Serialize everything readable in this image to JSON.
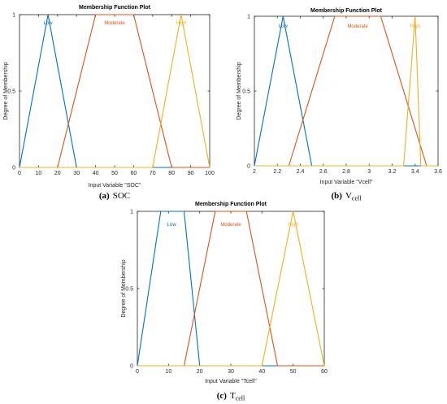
{
  "colors": {
    "Low": "#0072BD",
    "Moderate": "#D95319",
    "High": "#EDB120"
  },
  "chart_data": [
    {
      "type": "line",
      "title": "Membership Function Plot",
      "xlabel": "Input Variable \"SOC\"",
      "ylabel": "Degree of Membership",
      "xlim": [
        0,
        100
      ],
      "ylim": [
        0,
        1
      ],
      "xticks": [
        0,
        10,
        20,
        30,
        40,
        50,
        60,
        70,
        80,
        90,
        100
      ],
      "xtick_labels": [
        "0",
        "10",
        "20",
        "30",
        "40",
        "50",
        "60",
        "70",
        "80",
        "90",
        "100"
      ],
      "yticks": [
        0,
        0.5,
        1
      ],
      "ytick_labels": [
        "0",
        "0.5",
        "1"
      ],
      "caption_label": "(a)",
      "caption_text": "SOC",
      "caption_sub": "",
      "series": [
        {
          "name": "Low",
          "x": [
            0,
            15,
            30,
            100
          ],
          "y": [
            0,
            1,
            0,
            0
          ],
          "label_x": 15
        },
        {
          "name": "Moderate",
          "x": [
            0,
            20,
            40,
            60,
            80,
            100
          ],
          "y": [
            0,
            0,
            1,
            1,
            0,
            0
          ],
          "label_x": 50
        },
        {
          "name": "High",
          "x": [
            0,
            70,
            85,
            100
          ],
          "y": [
            0,
            0,
            1,
            0
          ],
          "label_x": 85
        }
      ]
    },
    {
      "type": "line",
      "title": "Membership Function Plot",
      "xlabel": "Input Variable \"Vcell\"",
      "ylabel": "Degree of Membership",
      "xlim": [
        2,
        3.6
      ],
      "ylim": [
        0,
        1
      ],
      "xticks": [
        2,
        2.2,
        2.4,
        2.6,
        2.8,
        3,
        3.2,
        3.4,
        3.6
      ],
      "xtick_labels": [
        "2",
        "2.2",
        "2.4",
        "2.6",
        "2.8",
        "3",
        "3.2",
        "3.4",
        "3.6"
      ],
      "yticks": [
        0,
        0.5,
        1
      ],
      "ytick_labels": [
        "0",
        "0.5",
        "1"
      ],
      "caption_label": "(b)",
      "caption_text": "V",
      "caption_sub": "cell",
      "series": [
        {
          "name": "Low",
          "x": [
            2,
            2.25,
            2.5,
            3.6
          ],
          "y": [
            0,
            1,
            0,
            0
          ],
          "label_x": 2.25
        },
        {
          "name": "Moderate",
          "x": [
            2,
            2.3,
            2.7,
            3.1,
            3.5,
            3.6
          ],
          "y": [
            0,
            0,
            1,
            1,
            0,
            0
          ],
          "label_x": 2.9
        },
        {
          "name": "High",
          "x": [
            2,
            3.3,
            3.4,
            3.45,
            3.6
          ],
          "y": [
            0,
            0,
            1,
            0,
            0
          ],
          "label_x": 3.4
        }
      ]
    },
    {
      "type": "line",
      "title": "Membership Function Plot",
      "xlabel": "Input Variable \"Tcell\"",
      "ylabel": "Degree of Membership",
      "xlim": [
        0,
        60
      ],
      "ylim": [
        0,
        1
      ],
      "xticks": [
        0,
        10,
        20,
        30,
        40,
        50,
        60
      ],
      "xtick_labels": [
        "0",
        "10",
        "20",
        "30",
        "40",
        "50",
        "60"
      ],
      "yticks": [
        0,
        0.5,
        1
      ],
      "ytick_labels": [
        "0",
        "0.5",
        "1"
      ],
      "caption_label": "(c)",
      "caption_text": "T",
      "caption_sub": "cell",
      "series": [
        {
          "name": "Low",
          "x": [
            0,
            7.5,
            15,
            20,
            60
          ],
          "y": [
            0,
            1,
            1,
            0,
            0
          ],
          "label_x": 11
        },
        {
          "name": "Moderate",
          "x": [
            0,
            15,
            25,
            35,
            45,
            60
          ],
          "y": [
            0,
            0,
            1,
            1,
            0,
            0
          ],
          "label_x": 30
        },
        {
          "name": "High",
          "x": [
            0,
            40,
            50,
            60
          ],
          "y": [
            0,
            0,
            1,
            0
          ],
          "label_x": 50
        }
      ]
    }
  ]
}
